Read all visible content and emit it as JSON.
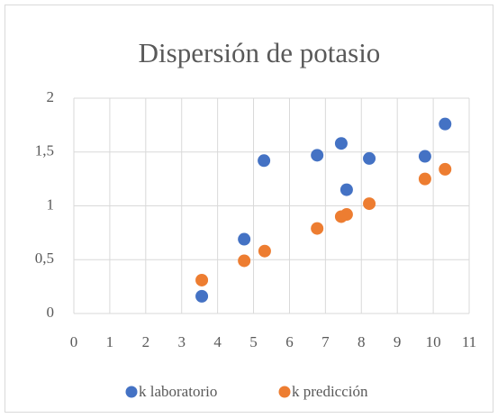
{
  "chart_data": {
    "type": "scatter",
    "title": "Dispersión de potasio",
    "series": [
      {
        "name": "k laboratorio",
        "color": "#4472c4",
        "x": [
          3.56,
          4.74,
          5.29,
          6.77,
          7.44,
          7.59,
          8.22,
          9.77,
          10.33
        ],
        "values": [
          0.16,
          0.69,
          1.42,
          1.47,
          1.58,
          1.15,
          1.44,
          1.46,
          1.76
        ]
      },
      {
        "name": "k predicción",
        "color": "#ed7d31",
        "x": [
          3.56,
          4.74,
          5.31,
          6.77,
          7.44,
          7.59,
          8.22,
          9.77,
          10.33
        ],
        "values": [
          0.31,
          0.49,
          0.58,
          0.79,
          0.9,
          0.92,
          1.02,
          1.25,
          1.34
        ]
      }
    ],
    "xlim": [
      0,
      11
    ],
    "xticks": [
      0,
      1,
      2,
      3,
      4,
      5,
      6,
      7,
      8,
      9,
      10,
      11
    ],
    "ylim": [
      0,
      2
    ],
    "yticks": [
      0,
      {
        "value": 0.5,
        "label": "0,5"
      },
      1,
      {
        "value": 1.5,
        "label": "1,5"
      },
      2
    ],
    "grid": true,
    "legend": "bottom"
  }
}
